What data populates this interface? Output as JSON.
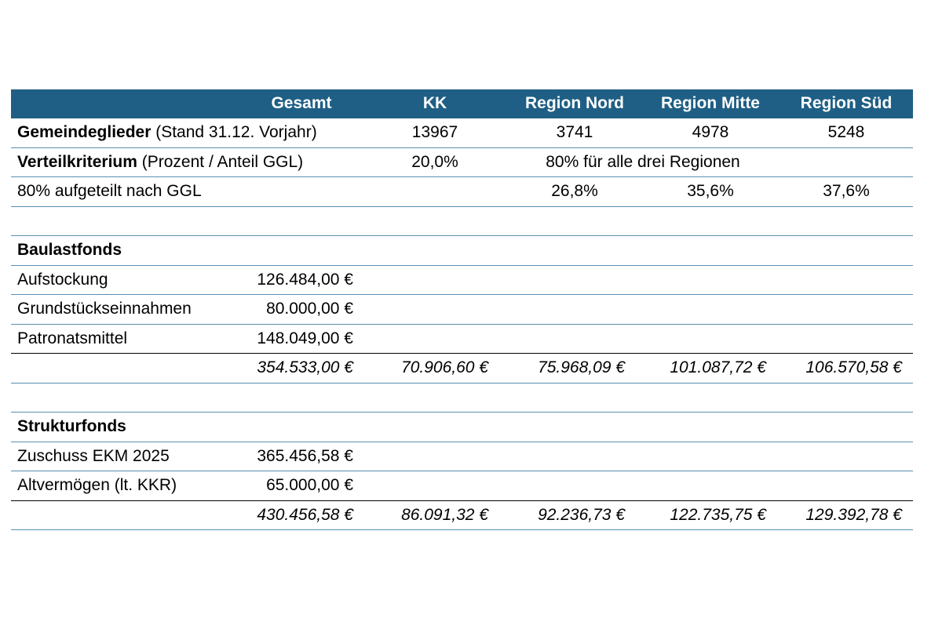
{
  "header": {
    "gesamt": "Gesamt",
    "kk": "KK",
    "nord": "Region Nord",
    "mitte": "Region Mitte",
    "sued": "Region Süd"
  },
  "rows": {
    "ggl": {
      "label_bold": "Gemeindeglieder",
      "label_rest": " (Stand 31.12. Vorjahr)",
      "kk": "13967",
      "nord": "3741",
      "mitte": "4978",
      "sued": "5248"
    },
    "verteil": {
      "label_bold": "Verteilkriterium",
      "label_rest": " (Prozent / Anteil GGL)",
      "kk": "20,0%",
      "regions": "80% für alle drei Regionen"
    },
    "aufgeteilt": {
      "label": "80% aufgeteilt nach GGL",
      "nord": "26,8%",
      "mitte": "35,6%",
      "sued": "37,6%"
    },
    "baulast_title": "Baulastfonds",
    "aufstockung": {
      "label": "Aufstockung",
      "gesamt": "126.484,00 €"
    },
    "grundstueck": {
      "label": "Grundstückseinnahmen",
      "gesamt": "80.000,00 €"
    },
    "patronat": {
      "label": "Patronatsmittel",
      "gesamt": "148.049,00 €"
    },
    "baulast_sum": {
      "gesamt": "354.533,00 €",
      "kk": "70.906,60 €",
      "nord": "75.968,09 €",
      "mitte": "101.087,72 €",
      "sued": "106.570,58 €"
    },
    "struktur_title": "Strukturfonds",
    "zuschuss": {
      "label": "Zuschuss EKM 2025",
      "gesamt": "365.456,58 €"
    },
    "altvermoegen": {
      "label": "Altvermögen (lt. KKR)",
      "gesamt": "65.000,00 €"
    },
    "struktur_sum": {
      "gesamt": "430.456,58 €",
      "kk": "86.091,32 €",
      "nord": "92.236,73 €",
      "mitte": "122.735,75 €",
      "sued": "129.392,78 €"
    }
  },
  "colors": {
    "header_bg": "#1f5f85",
    "grid_line": "#5b8fb0"
  }
}
